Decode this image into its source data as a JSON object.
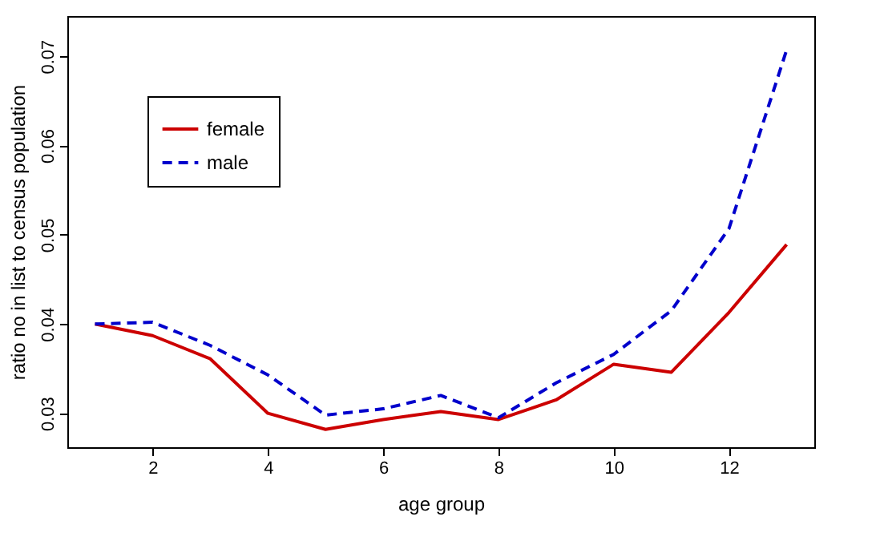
{
  "chart_data": {
    "type": "line",
    "xlabel": "age group",
    "ylabel": "ratio no in list to census population",
    "x": [
      1,
      2,
      3,
      4,
      5,
      6,
      7,
      8,
      9,
      10,
      11,
      12,
      13
    ],
    "series": [
      {
        "name": "female",
        "color": "#cc0000",
        "line_style": "solid",
        "values": [
          0.04,
          0.0387,
          0.0361,
          0.03,
          0.0282,
          0.0293,
          0.0302,
          0.0293,
          0.0315,
          0.0355,
          0.0346,
          0.0413,
          0.0489
        ]
      },
      {
        "name": "male",
        "color": "#0000cc",
        "line_style": "dashed",
        "values": [
          0.04,
          0.0402,
          0.0376,
          0.0343,
          0.0298,
          0.0305,
          0.032,
          0.0295,
          0.0334,
          0.0366,
          0.0415,
          0.0507,
          0.0707
        ]
      }
    ],
    "xlim": [
      0.52,
      13.48
    ],
    "xticks": [
      2,
      4,
      6,
      8,
      10,
      12
    ],
    "ylim": [
      0.0262,
      0.0745
    ],
    "yticks": [
      0.03,
      0.04,
      0.05,
      0.06,
      0.07
    ],
    "grid": false,
    "legend": "top left",
    "marker": "none"
  }
}
